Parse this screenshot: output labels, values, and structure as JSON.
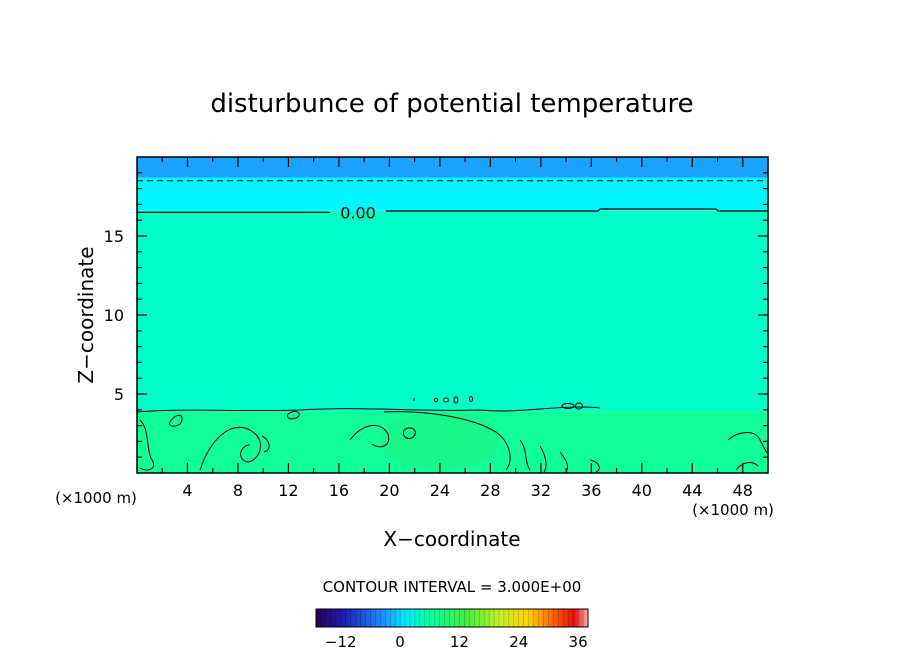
{
  "chart_data": {
    "type": "heatmap",
    "title": "disturbunce of potential temperature",
    "xlabel": "X−coordinate",
    "ylabel": "Z−coordinate",
    "x_unit_left": "(×1000 m)",
    "x_unit_right": "(×1000 m)",
    "xlim": [
      0,
      50
    ],
    "ylim": [
      0,
      20
    ],
    "x_ticks": [
      4,
      8,
      12,
      16,
      20,
      24,
      28,
      32,
      36,
      40,
      44,
      48
    ],
    "y_ticks": [
      5,
      10,
      15
    ],
    "contour_interval_text": "CONTOUR INTERVAL = 3.000E+00",
    "contour_label": "0.00",
    "contour_zero_level_z": 16.5,
    "dashed_contour_z": 18.5,
    "field_bands": [
      {
        "z_from": 18.7,
        "z_to": 20.0,
        "value": -6
      },
      {
        "z_from": 16.6,
        "z_to": 18.7,
        "value": -3
      },
      {
        "z_from": 3.9,
        "z_to": 16.6,
        "value": 0
      },
      {
        "z_from": 0.0,
        "z_to": 3.9,
        "value": 2
      }
    ],
    "colorbar": {
      "range": [
        -17,
        38
      ],
      "tick_labels": [
        "−12",
        "0",
        "12",
        "24",
        "36"
      ],
      "tick_values": [
        -12,
        0,
        12,
        24,
        36
      ]
    },
    "grid": false
  }
}
